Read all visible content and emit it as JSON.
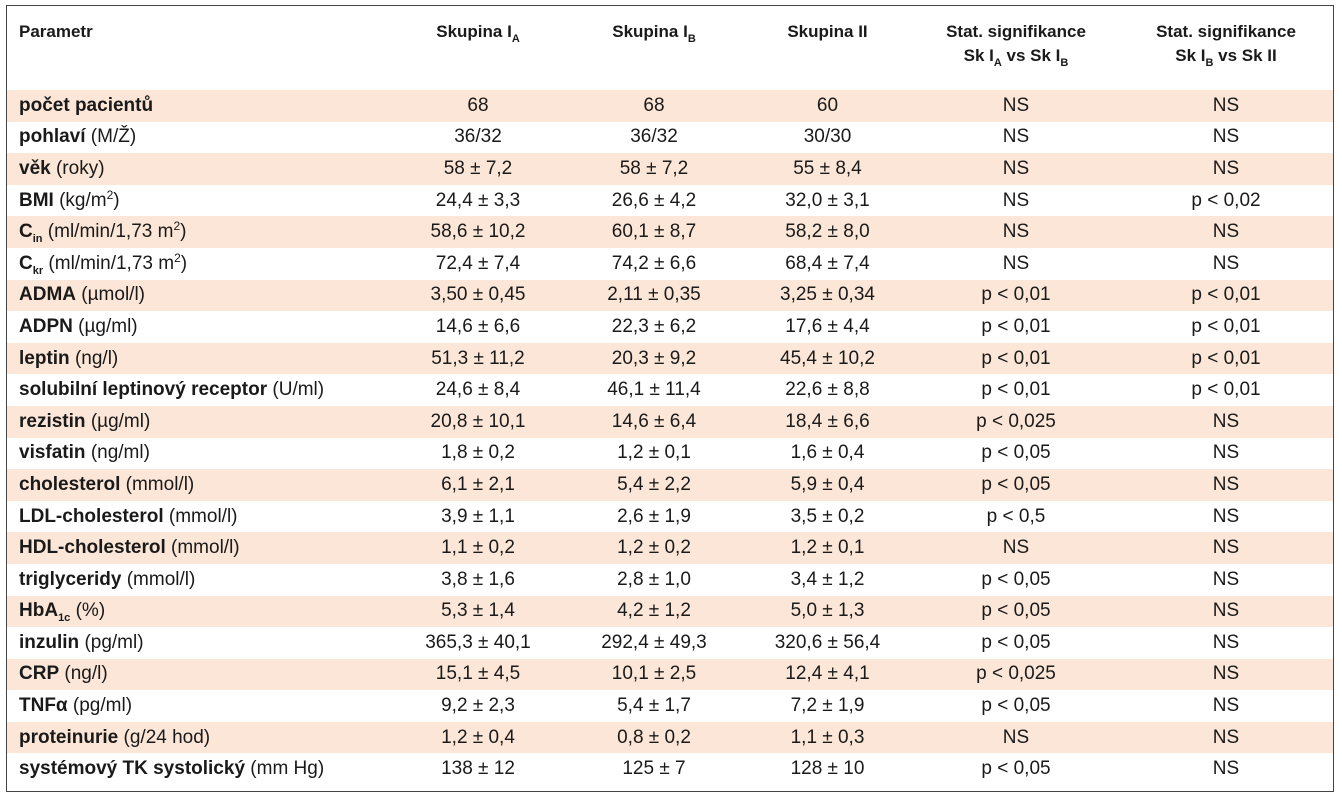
{
  "headers": {
    "parameter": "Parametr",
    "group_ia": {
      "base": "Skupina I",
      "sub": "A"
    },
    "group_ib": {
      "base": "Skupina I",
      "sub": "B"
    },
    "group_ii": "Skupina II",
    "sig1": {
      "line1": "Stat. signifikance",
      "pre": "Sk I",
      "sub1": "A",
      "mid": " vs Sk I",
      "sub2": "B"
    },
    "sig2": {
      "line1": "Stat. signifikance",
      "pre": "Sk I",
      "sub1": "B",
      "mid": " vs Sk II"
    }
  },
  "rows": [
    {
      "name": "počet pacientů",
      "unit": "",
      "ia": "68",
      "ib": "68",
      "ii": "60",
      "sig_a_b": "NS",
      "sig_b_ii": "NS"
    },
    {
      "name": "pohlaví",
      "unit": "(M/Ž)",
      "ia": "36/32",
      "ib": "36/32",
      "ii": "30/30",
      "sig_a_b": "NS",
      "sig_b_ii": "NS"
    },
    {
      "name": "věk",
      "unit": "(roky)",
      "ia": "58 ± 7,2",
      "ib": "58 ± 7,2",
      "ii": "55 ± 8,4",
      "sig_a_b": "NS",
      "sig_b_ii": "NS"
    },
    {
      "name": "BMI",
      "unit": "(kg/m",
      "unit_sup": "2",
      "unit_after": ")",
      "ia": "24,4 ± 3,3",
      "ib": "26,6 ± 4,2",
      "ii": "32,0 ± 3,1",
      "sig_a_b": "NS",
      "sig_b_ii": "p < 0,02"
    },
    {
      "name": "C",
      "name_sub": "in",
      "unit": "(ml/min/1,73 m",
      "unit_sup": "2",
      "unit_after": ")",
      "ia": "58,6 ± 10,2",
      "ib": "60,1 ± 8,7",
      "ii": "58,2 ± 8,0",
      "sig_a_b": "NS",
      "sig_b_ii": "NS"
    },
    {
      "name": "C",
      "name_sub": "kr",
      "unit": "(ml/min/1,73 m",
      "unit_sup": "2",
      "unit_after": ")",
      "ia": "72,4 ± 7,4",
      "ib": "74,2 ± 6,6",
      "ii": "68,4 ± 7,4",
      "sig_a_b": "NS",
      "sig_b_ii": "NS"
    },
    {
      "name": "ADMA",
      "unit": "(µmol/l)",
      "ia": "3,50 ± 0,45",
      "ib": "2,11 ± 0,35",
      "ii": "3,25 ± 0,34",
      "sig_a_b": "p < 0,01",
      "sig_b_ii": "p < 0,01"
    },
    {
      "name": "ADPN",
      "unit": "(µg/ml)",
      "ia": "14,6 ± 6,6",
      "ib": "22,3 ± 6,2",
      "ii": "17,6 ± 4,4",
      "sig_a_b": "p < 0,01",
      "sig_b_ii": "p < 0,01"
    },
    {
      "name": "leptin",
      "unit": "(ng/l)",
      "ia": "51,3 ± 11,2",
      "ib": "20,3 ± 9,2",
      "ii": "45,4 ± 10,2",
      "sig_a_b": "p < 0,01",
      "sig_b_ii": "p < 0,01"
    },
    {
      "name": "solubilní leptinový receptor",
      "unit": "(U/ml)",
      "ia": "24,6 ± 8,4",
      "ib": "46,1 ± 11,4",
      "ii": "22,6 ± 8,8",
      "sig_a_b": "p < 0,01",
      "sig_b_ii": "p < 0,01"
    },
    {
      "name": "rezistin",
      "unit": "(µg/ml)",
      "ia": "20,8 ± 10,1",
      "ib": "14,6 ± 6,4",
      "ii": "18,4 ± 6,6",
      "sig_a_b": "p < 0,025",
      "sig_b_ii": "NS"
    },
    {
      "name": "visfatin",
      "unit": "(ng/ml)",
      "ia": "1,8 ± 0,2",
      "ib": "1,2 ± 0,1",
      "ii": "1,6 ± 0,4",
      "sig_a_b": "p < 0,05",
      "sig_b_ii": "NS"
    },
    {
      "name": "cholesterol",
      "unit": "(mmol/l)",
      "ia": "6,1 ± 2,1",
      "ib": "5,4 ± 2,2",
      "ii": "5,9 ± 0,4",
      "sig_a_b": "p < 0,05",
      "sig_b_ii": "NS"
    },
    {
      "name": "LDL-cholesterol",
      "unit": "(mmol/l)",
      "ia": "3,9 ± 1,1",
      "ib": "2,6 ± 1,9",
      "ii": "3,5 ± 0,2",
      "sig_a_b": "p < 0,5",
      "sig_b_ii": "NS"
    },
    {
      "name": "HDL-cholesterol",
      "unit": "(mmol/l)",
      "ia": "1,1 ± 0,2",
      "ib": "1,2 ± 0,2",
      "ii": "1,2 ± 0,1",
      "sig_a_b": "NS",
      "sig_b_ii": "NS"
    },
    {
      "name": "triglyceridy",
      "unit": "(mmol/l)",
      "ia": "3,8 ± 1,6",
      "ib": "2,8 ± 1,0",
      "ii": "3,4 ± 1,2",
      "sig_a_b": "p < 0,05",
      "sig_b_ii": "NS"
    },
    {
      "name": "HbA",
      "name_sub": "1c",
      "unit": "(%)",
      "ia": "5,3 ± 1,4",
      "ib": "4,2 ± 1,2",
      "ii": "5,0 ± 1,3",
      "sig_a_b": "p < 0,05",
      "sig_b_ii": "NS"
    },
    {
      "name": "inzulin",
      "unit": "(pg/ml)",
      "ia": "365,3 ± 40,1",
      "ib": "292,4 ± 49,3",
      "ii": "320,6 ± 56,4",
      "sig_a_b": "p < 0,05",
      "sig_b_ii": "NS"
    },
    {
      "name": "CRP",
      "unit": "(ng/l)",
      "ia": "15,1 ± 4,5",
      "ib": "10,1 ± 2,5",
      "ii": "12,4 ± 4,1",
      "sig_a_b": "p < 0,025",
      "sig_b_ii": "NS"
    },
    {
      "name": "TNFα",
      "unit": "(pg/ml)",
      "ia": "9,2 ± 2,3",
      "ib": "5,4 ± 1,7",
      "ii": "7,2 ± 1,9",
      "sig_a_b": "p < 0,05",
      "sig_b_ii": "NS"
    },
    {
      "name": "proteinurie",
      "unit": "(g/24 hod)",
      "ia": "1,2 ± 0,4",
      "ib": "0,8 ± 0,2",
      "ii": "1,1 ± 0,3",
      "sig_a_b": "NS",
      "sig_b_ii": "NS"
    },
    {
      "name": "systémový TK systolický",
      "unit": "(mm Hg)",
      "ia": "138 ± 12",
      "ib": "125 ± 7",
      "ii": "128 ± 10",
      "sig_a_b": "p < 0,05",
      "sig_b_ii": "NS"
    }
  ]
}
